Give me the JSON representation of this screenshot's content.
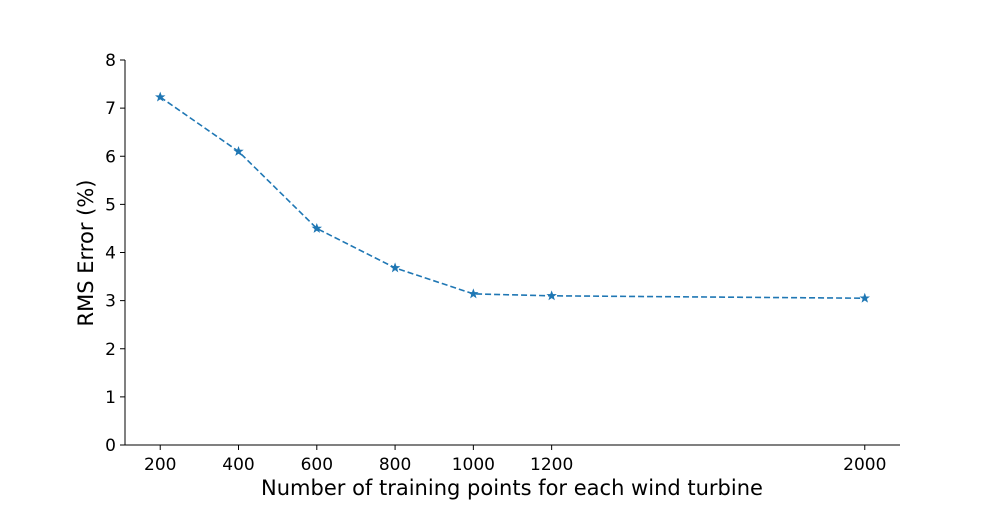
{
  "chart_data": {
    "type": "line",
    "xlabel": "Number of training points for each wind turbine",
    "ylabel": "RMS Error (%)",
    "x": [
      200,
      400,
      600,
      800,
      1000,
      1200,
      2000
    ],
    "series": [
      {
        "values": [
          7.23,
          6.1,
          4.5,
          3.68,
          3.14,
          3.1,
          3.05
        ],
        "color": "#1f77b4",
        "line_style": "dashed",
        "marker": "star"
      }
    ],
    "xlim": [
      110,
      2090
    ],
    "ylim": [
      0,
      8
    ],
    "x_ticks": [
      200,
      400,
      600,
      800,
      1000,
      1200,
      2000
    ],
    "y_ticks": [
      0,
      1,
      2,
      3,
      4,
      5,
      6,
      7,
      8
    ],
    "x_tick_labels": [
      "200",
      "400",
      "600",
      "800",
      "1000",
      "1200",
      "2000"
    ],
    "y_tick_labels": [
      "0",
      "1",
      "2",
      "3",
      "4",
      "5",
      "6",
      "7",
      "8"
    ],
    "grid": false,
    "spines": "left-bottom"
  }
}
